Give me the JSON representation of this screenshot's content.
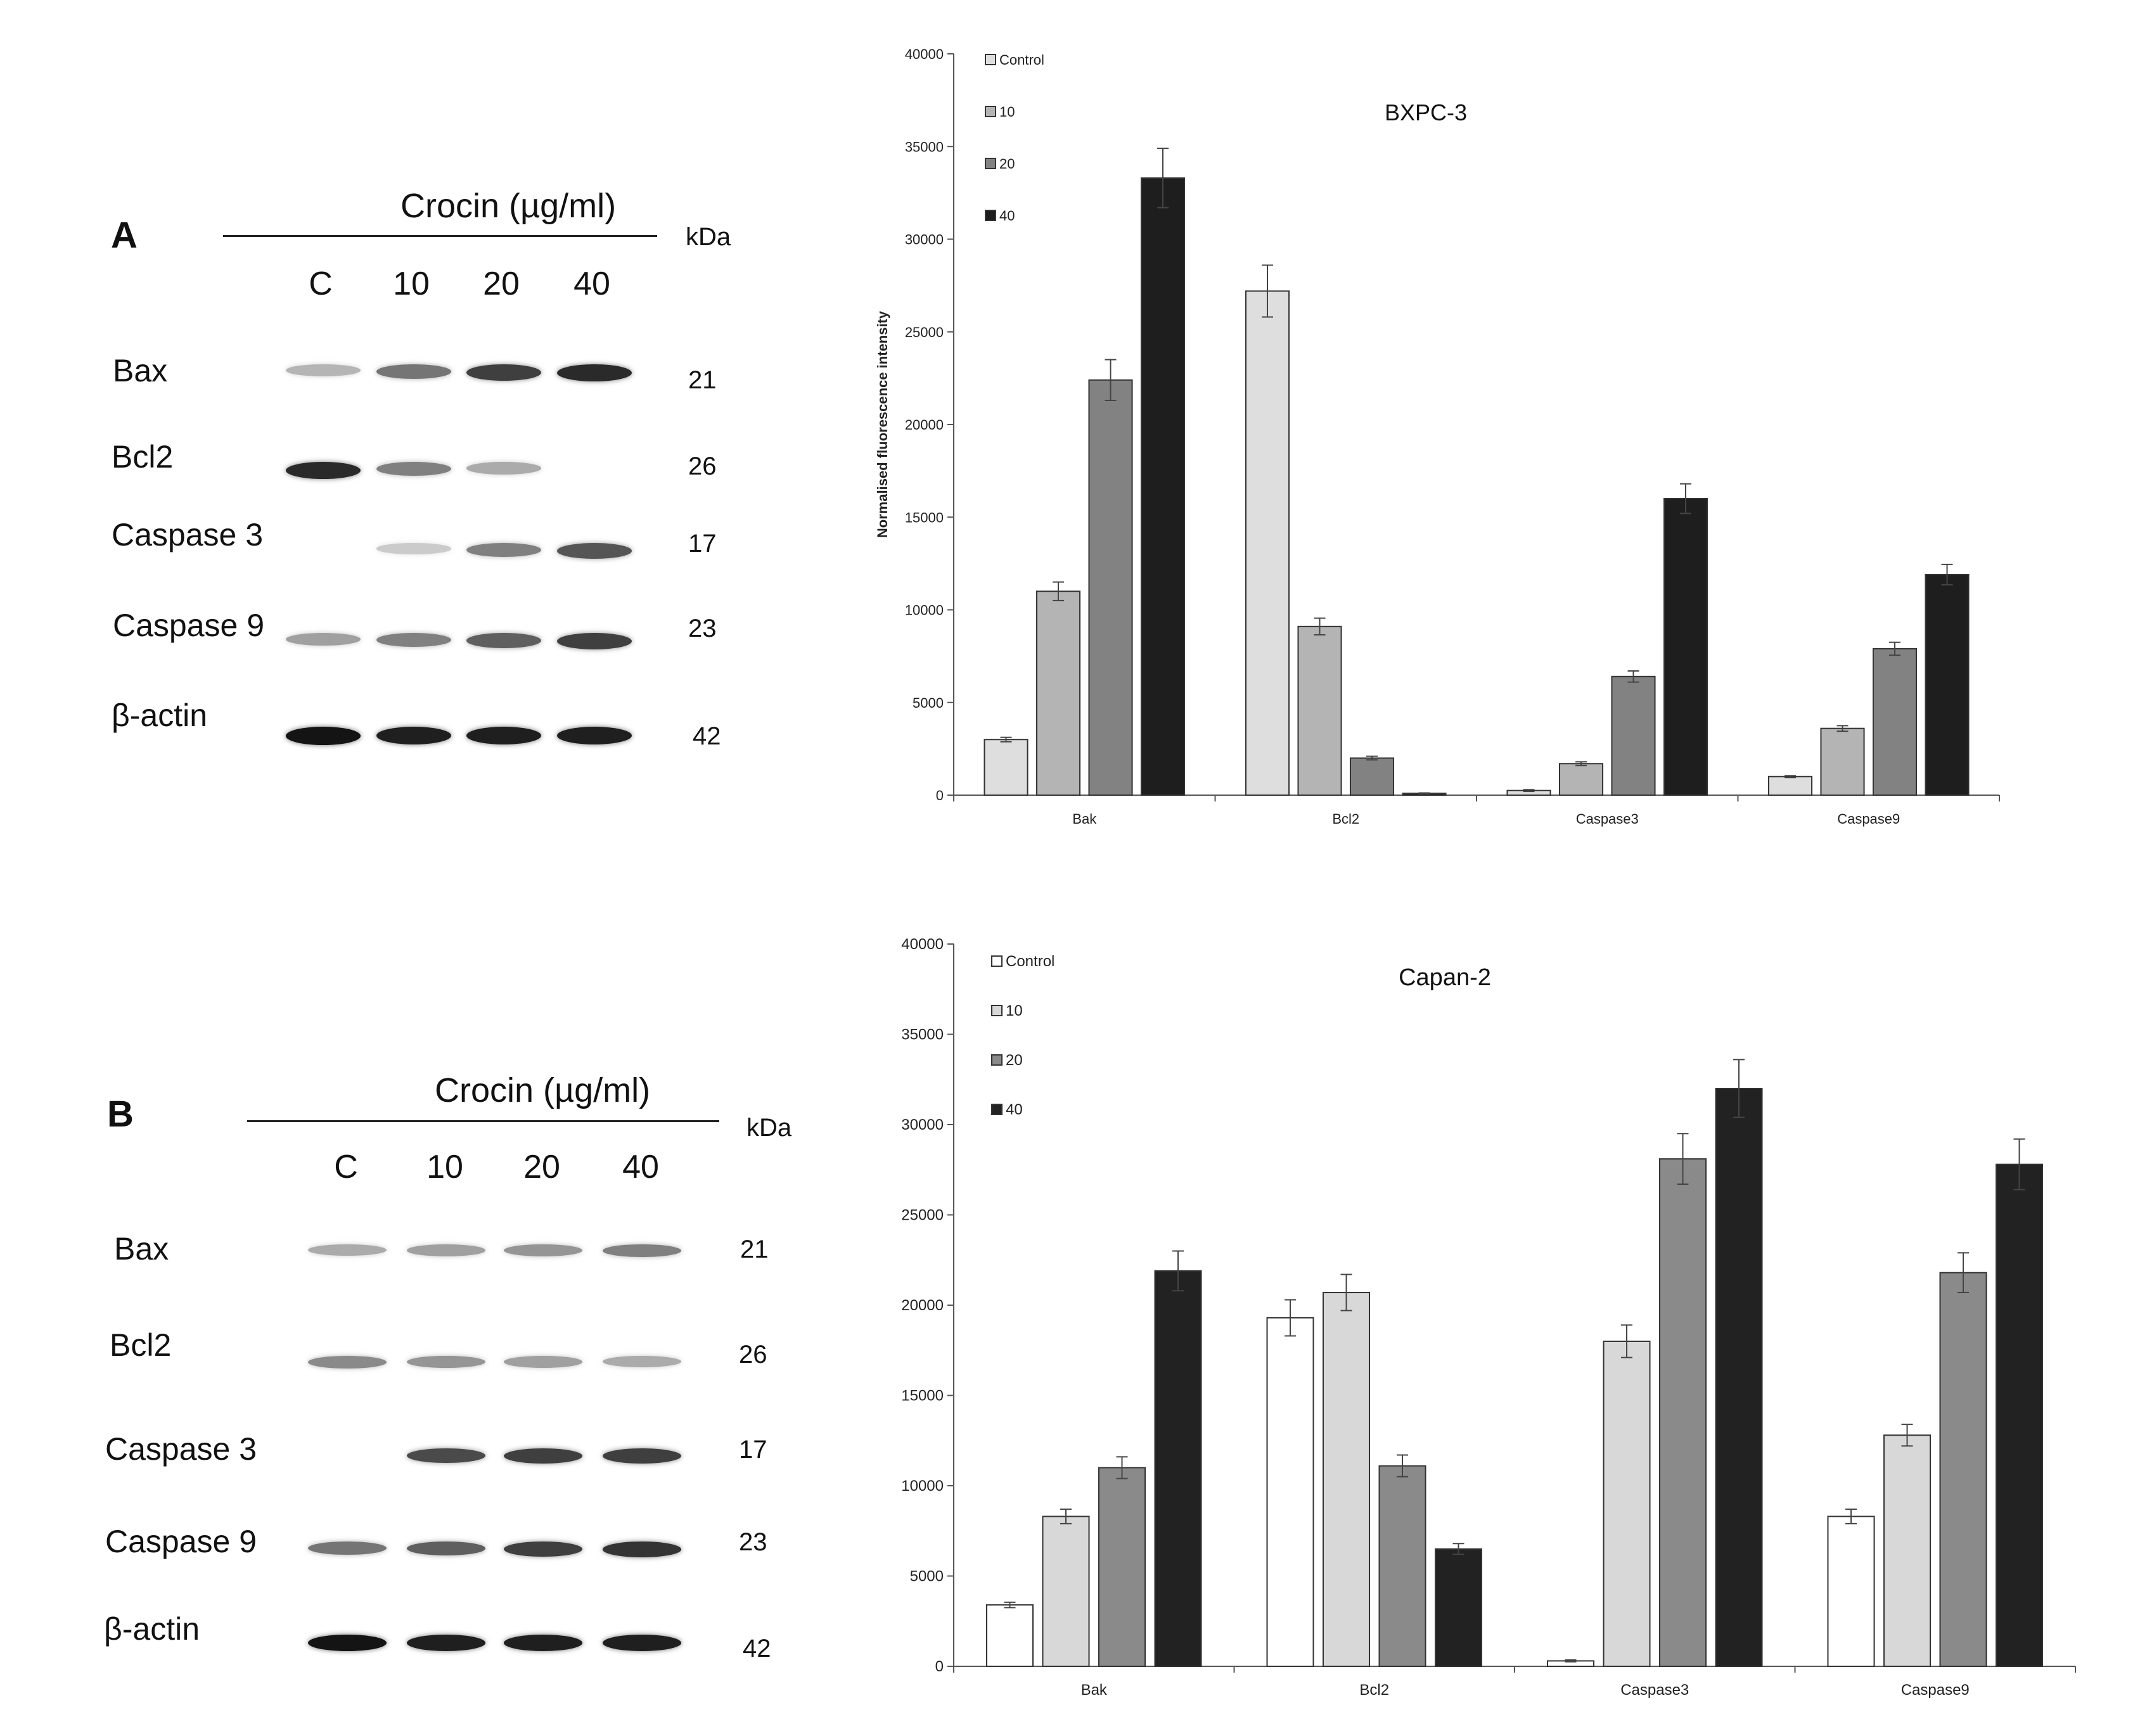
{
  "blots": [
    {
      "letter": "A",
      "title": "Crocin (µg/ml)",
      "kda_label": "kDa",
      "lanes": [
        "C",
        "10",
        "20",
        "40"
      ],
      "rows": [
        {
          "protein": "Bax",
          "kda": "21",
          "intensities": [
            0.25,
            0.55,
            0.8,
            0.9
          ]
        },
        {
          "protein": "Bcl2",
          "kda": "26",
          "intensities": [
            0.9,
            0.5,
            0.3,
            0.0
          ]
        },
        {
          "protein": "Caspase 3",
          "kda": "17",
          "intensities": [
            0.0,
            0.15,
            0.5,
            0.7
          ]
        },
        {
          "protein": "Caspase 9",
          "kda": "23",
          "intensities": [
            0.35,
            0.5,
            0.65,
            0.8
          ]
        },
        {
          "protein": "β-actin",
          "kda": "42",
          "intensities": [
            1.0,
            0.95,
            0.95,
            0.95
          ]
        }
      ]
    },
    {
      "letter": "B",
      "title": "Crocin (µg/ml)",
      "kda_label": "kDa",
      "lanes": [
        "C",
        "10",
        "20",
        "40"
      ],
      "rows": [
        {
          "protein": "Bax",
          "kda": "21",
          "intensities": [
            0.3,
            0.35,
            0.4,
            0.5
          ]
        },
        {
          "protein": "Bcl2",
          "kda": "26",
          "intensities": [
            0.45,
            0.4,
            0.35,
            0.3
          ]
        },
        {
          "protein": "Caspase 3",
          "kda": "17",
          "intensities": [
            0.0,
            0.75,
            0.8,
            0.8
          ]
        },
        {
          "protein": "Caspase 9",
          "kda": "23",
          "intensities": [
            0.55,
            0.65,
            0.8,
            0.85
          ]
        },
        {
          "protein": "β-actin",
          "kda": "42",
          "intensities": [
            1.0,
            0.95,
            0.95,
            0.95
          ]
        }
      ]
    }
  ],
  "chart_data": [
    {
      "type": "bar",
      "title": "BXPC-3",
      "ylabel": "Normalised fluorescence intensity",
      "xlabel": "",
      "ylim": [
        0,
        40000
      ],
      "yticks": [
        0,
        5000,
        10000,
        15000,
        20000,
        25000,
        30000,
        35000,
        40000
      ],
      "categories": [
        "Bak",
        "Bcl2",
        "Caspase3",
        "Caspase9"
      ],
      "legend_position": "top-left",
      "series": [
        {
          "name": "Control",
          "color": "#dedede",
          "values": [
            3000,
            27200,
            250,
            1000
          ],
          "errors": [
            120,
            1400,
            50,
            50
          ]
        },
        {
          "name": "10",
          "color": "#b4b4b4",
          "values": [
            11000,
            9100,
            1700,
            3600
          ],
          "errors": [
            500,
            450,
            100,
            150
          ]
        },
        {
          "name": "20",
          "color": "#828282",
          "values": [
            22400,
            2000,
            6400,
            7900
          ],
          "errors": [
            1100,
            100,
            300,
            350
          ]
        },
        {
          "name": "40",
          "color": "#1e1e1e",
          "values": [
            33300,
            100,
            16000,
            11900
          ],
          "errors": [
            1600,
            20,
            800,
            550
          ]
        }
      ]
    },
    {
      "type": "bar",
      "title": "Capan-2",
      "ylabel": "",
      "xlabel": "",
      "ylim": [
        0,
        40000
      ],
      "yticks": [
        0,
        5000,
        10000,
        15000,
        20000,
        25000,
        30000,
        35000,
        40000
      ],
      "categories": [
        "Bak",
        "Bcl2",
        "Caspase3",
        "Caspase9"
      ],
      "legend_position": "top-left",
      "series": [
        {
          "name": "Control",
          "color": "#ffffff",
          "values": [
            3400,
            19300,
            300,
            8300
          ],
          "errors": [
            150,
            1000,
            50,
            400
          ]
        },
        {
          "name": "10",
          "color": "#d8d8d8",
          "values": [
            8300,
            20700,
            18000,
            12800
          ],
          "errors": [
            400,
            1000,
            900,
            600
          ]
        },
        {
          "name": "20",
          "color": "#8a8a8a",
          "values": [
            11000,
            11100,
            28100,
            21800
          ],
          "errors": [
            600,
            600,
            1400,
            1100
          ]
        },
        {
          "name": "40",
          "color": "#222222",
          "values": [
            21900,
            6500,
            32000,
            27800
          ],
          "errors": [
            1100,
            300,
            1600,
            1400
          ]
        }
      ]
    }
  ]
}
